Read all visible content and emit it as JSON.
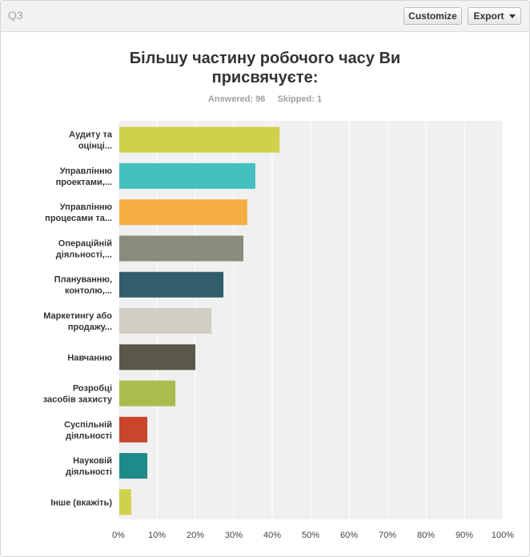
{
  "header": {
    "question_label": "Q3",
    "customize_label": "Customize",
    "export_label": "Export"
  },
  "question": {
    "title_line1": "Більшу частину робочого часу Ви",
    "title_line2": "присвячуєте:",
    "answered_label": "Answered: 96",
    "skipped_label": "Skipped: 1"
  },
  "chart_data": {
    "type": "bar",
    "orientation": "horizontal",
    "categories": [
      [
        "Аудиту та",
        "оцінці..."
      ],
      [
        "Управлінню",
        "проектами,..."
      ],
      [
        "Управлінню",
        "процесами та..."
      ],
      [
        "Операційній",
        "діяльності,..."
      ],
      [
        "Плануванню,",
        "контолю,..."
      ],
      [
        "Маркетингу або",
        "продажу..."
      ],
      [
        "Навчанню"
      ],
      [
        "Розробці",
        "засобів захисту"
      ],
      [
        "Суспільній",
        "діяльності"
      ],
      [
        "Науковій",
        "діяльності"
      ],
      [
        "Інше (вкажіть)"
      ]
    ],
    "values": [
      41.7,
      35.4,
      33.3,
      32.3,
      27.1,
      24.0,
      19.8,
      14.6,
      7.3,
      7.3,
      3.1
    ],
    "colors": [
      "#d0d14a",
      "#45c0c0",
      "#f5ad42",
      "#8b8b7c",
      "#325d6b",
      "#d1cfc3",
      "#5a5849",
      "#a9bd4e",
      "#c9462c",
      "#1f8b88",
      "#d0d14a"
    ],
    "x_ticks": [
      "0%",
      "10%",
      "20%",
      "30%",
      "40%",
      "50%",
      "60%",
      "70%",
      "80%",
      "90%",
      "100%"
    ],
    "xlim": [
      0,
      100
    ],
    "grid": true
  }
}
